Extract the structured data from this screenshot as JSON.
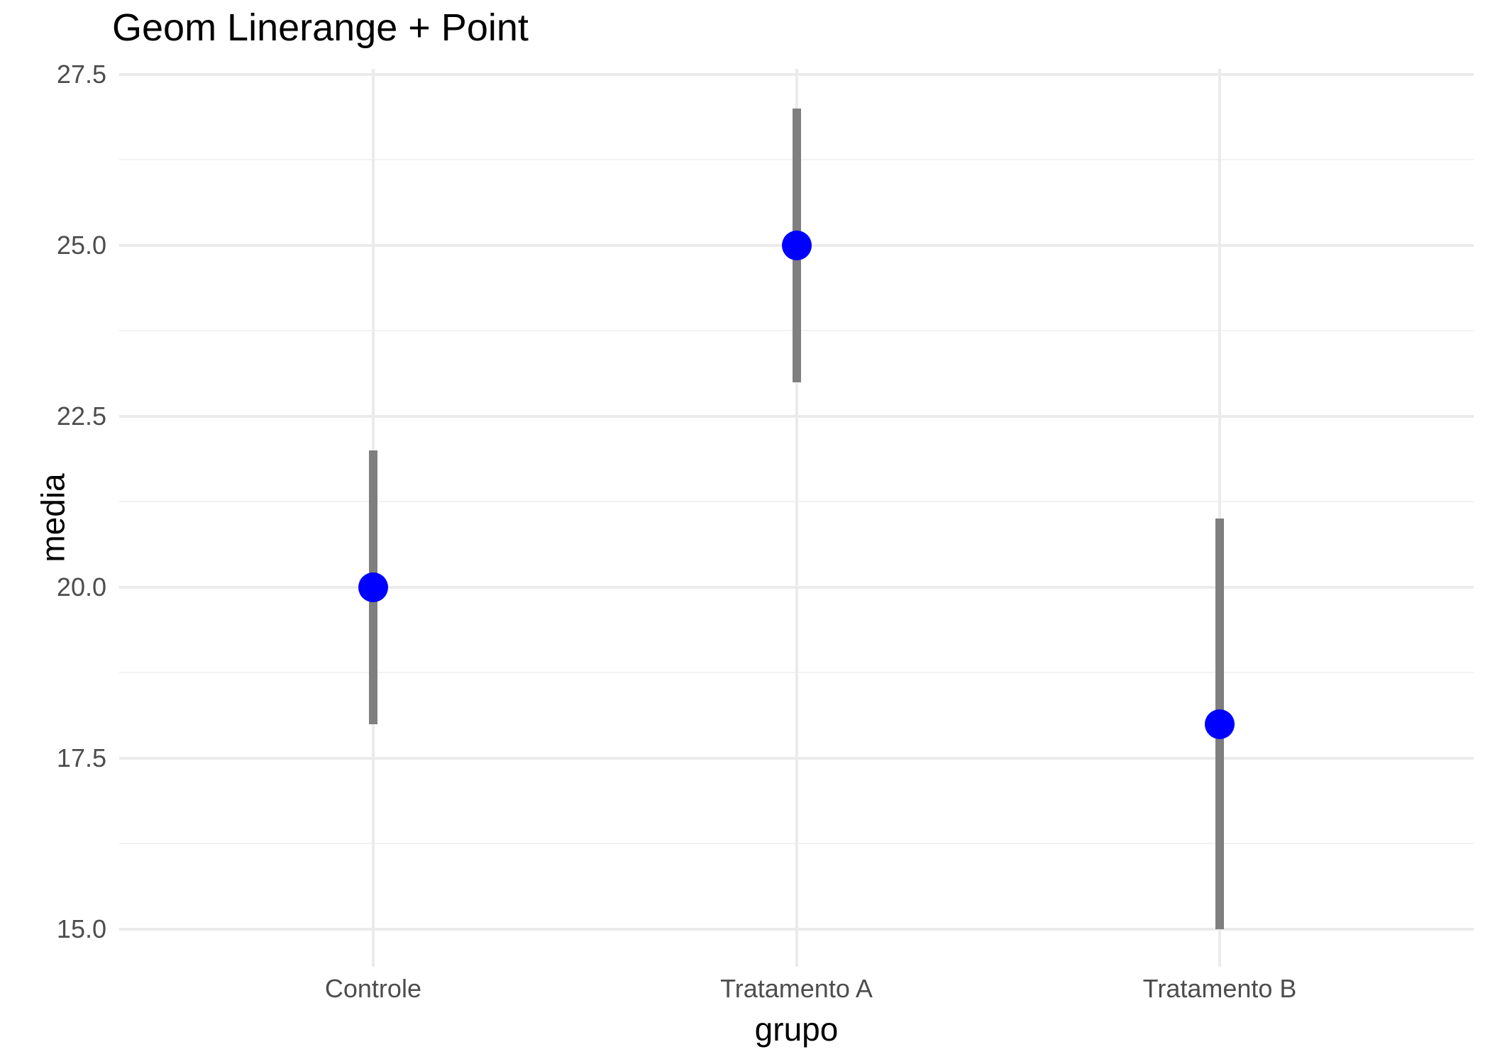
{
  "chart_data": {
    "type": "linerange-point",
    "title": "Geom Linerange + Point",
    "xlabel": "grupo",
    "ylabel": "media",
    "categories": [
      "Controle",
      "Tratamento A",
      "Tratamento B"
    ],
    "series": [
      {
        "name": "media",
        "values": [
          20.0,
          25.0,
          18.0
        ],
        "ymin": [
          18.0,
          23.0,
          15.0
        ],
        "ymax": [
          22.0,
          27.0,
          21.0
        ]
      }
    ],
    "y_ticks": [
      15.0,
      17.5,
      20.0,
      22.5,
      25.0,
      27.5
    ],
    "y_tick_labels": [
      "15.0",
      "17.5",
      "20.0",
      "22.5",
      "25.0",
      "27.5"
    ],
    "y_minor_ticks": [
      16.25,
      18.75,
      21.25,
      23.75,
      26.25
    ],
    "ylim": [
      14.45,
      27.58
    ],
    "grid": "horizontal major+minor, one vertical major gridline per category",
    "legend": "none",
    "colors": {
      "point": "#0000ff",
      "linerange": "#7f7f7f",
      "grid_major": "#ebebeb",
      "grid_minor": "#f2f2f2",
      "axis_text": "#4d4d4d",
      "title_text": "#000000",
      "background": "#ffffff"
    }
  }
}
